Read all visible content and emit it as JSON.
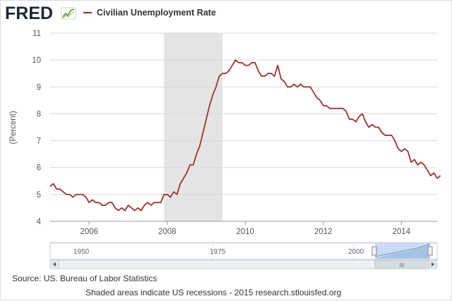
{
  "branding": {
    "logo_text": "FRED",
    "series_label": "Civilian Unemployment Rate",
    "colors": {
      "logo_text": "#1d2735",
      "logo_graph": "#5b8c2a"
    }
  },
  "chart_data": {
    "type": "line",
    "title": "",
    "xlabel": "",
    "ylabel": "(Percent)",
    "xlim": [
      2005.0,
      2014.917
    ],
    "ylim": [
      4,
      11
    ],
    "y_ticks": [
      4,
      5,
      6,
      7,
      8,
      9,
      10,
      11
    ],
    "x_ticks": [
      {
        "value": 2006,
        "label": "2006"
      },
      {
        "value": 2008,
        "label": "2008"
      },
      {
        "value": 2010,
        "label": "2010"
      },
      {
        "value": 2012,
        "label": "2012"
      },
      {
        "value": 2014,
        "label": "2014"
      }
    ],
    "grid": "horizontal",
    "legend": "top-left",
    "recession_shading": [
      {
        "start": 2007.917,
        "end": 2009.417
      }
    ],
    "series": [
      {
        "name": "Civilian Unemployment Rate",
        "color": "#a0322d",
        "start_year": 2005,
        "frequency": "monthly",
        "values": [
          5.3,
          5.4,
          5.2,
          5.2,
          5.1,
          5.0,
          5.0,
          4.9,
          5.0,
          5.0,
          5.0,
          4.9,
          4.7,
          4.8,
          4.7,
          4.7,
          4.6,
          4.6,
          4.7,
          4.7,
          4.5,
          4.4,
          4.5,
          4.4,
          4.6,
          4.5,
          4.4,
          4.5,
          4.4,
          4.6,
          4.7,
          4.6,
          4.7,
          4.7,
          4.7,
          5.0,
          5.0,
          4.9,
          5.1,
          5.0,
          5.4,
          5.6,
          5.8,
          6.1,
          6.1,
          6.5,
          6.8,
          7.3,
          7.8,
          8.3,
          8.7,
          9.0,
          9.4,
          9.5,
          9.5,
          9.6,
          9.8,
          10.0,
          9.9,
          9.9,
          9.8,
          9.8,
          9.9,
          9.9,
          9.6,
          9.4,
          9.4,
          9.5,
          9.5,
          9.4,
          9.8,
          9.3,
          9.2,
          9.0,
          9.0,
          9.1,
          9.0,
          9.1,
          9.0,
          9.0,
          9.0,
          8.8,
          8.6,
          8.5,
          8.3,
          8.3,
          8.2,
          8.2,
          8.2,
          8.2,
          8.2,
          8.1,
          7.8,
          7.8,
          7.7,
          7.9,
          8.0,
          7.7,
          7.5,
          7.6,
          7.5,
          7.5,
          7.3,
          7.2,
          7.2,
          7.2,
          7.0,
          6.7,
          6.6,
          6.7,
          6.6,
          6.2,
          6.3,
          6.1,
          6.2,
          6.1,
          5.9,
          5.7,
          5.8,
          5.6,
          5.7
        ]
      }
    ]
  },
  "navigator": {
    "labels": [
      "1950",
      "1975",
      "2000"
    ],
    "scrollbar_grip": "III"
  },
  "footer": {
    "source": "Source: US. Bureau of Labor Statistics",
    "note": "Shaded areas indicate US recessions - 2015 research.stlouisfed.org"
  }
}
